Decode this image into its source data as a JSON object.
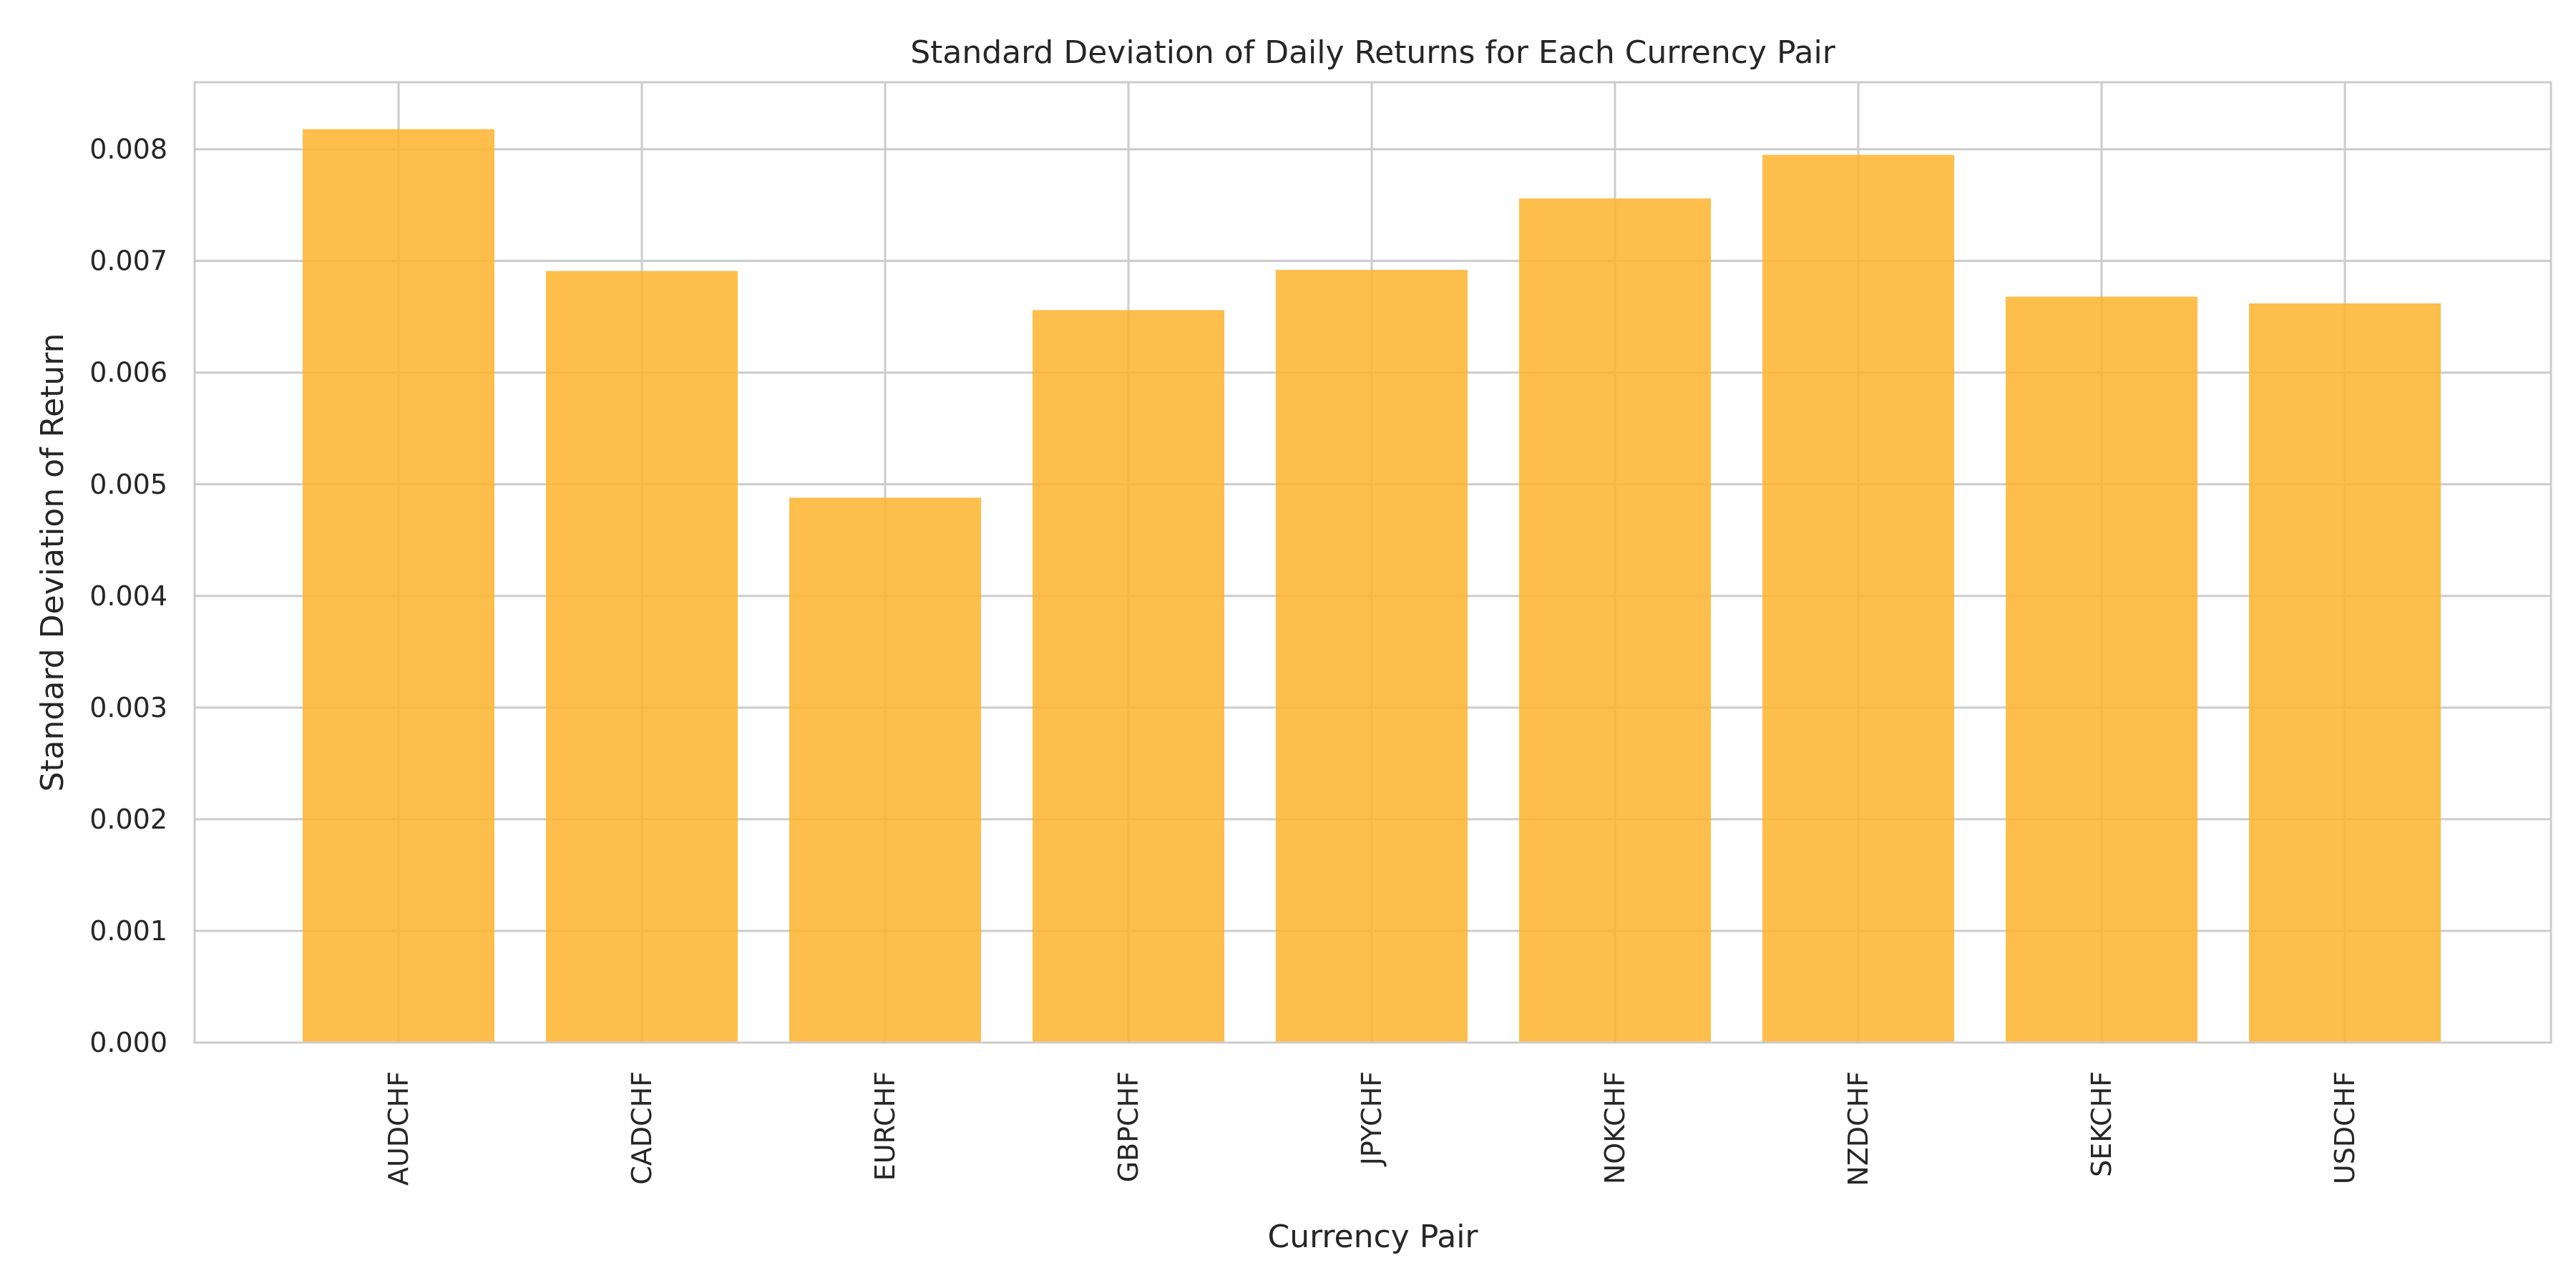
{
  "chart_data": {
    "type": "bar",
    "title": "Standard Deviation of Daily Returns for Each Currency Pair",
    "xlabel": "Currency Pair",
    "ylabel": "Standard Deviation of Return",
    "categories": [
      "AUDCHF",
      "CADCHF",
      "EURCHF",
      "GBPCHF",
      "JPYCHF",
      "NOKCHF",
      "NZDCHF",
      "SEKCHF",
      "USDCHF"
    ],
    "values": [
      0.00818,
      0.00691,
      0.00488,
      0.00656,
      0.00692,
      0.00756,
      0.00795,
      0.00668,
      0.00662
    ],
    "ylim": [
      0,
      0.0086
    ],
    "yticks": [
      "0.000",
      "0.001",
      "0.002",
      "0.003",
      "0.004",
      "0.005",
      "0.006",
      "0.007",
      "0.008"
    ],
    "grid": true,
    "bar_color": "#FDB32D",
    "bar_opacity": 0.85
  }
}
